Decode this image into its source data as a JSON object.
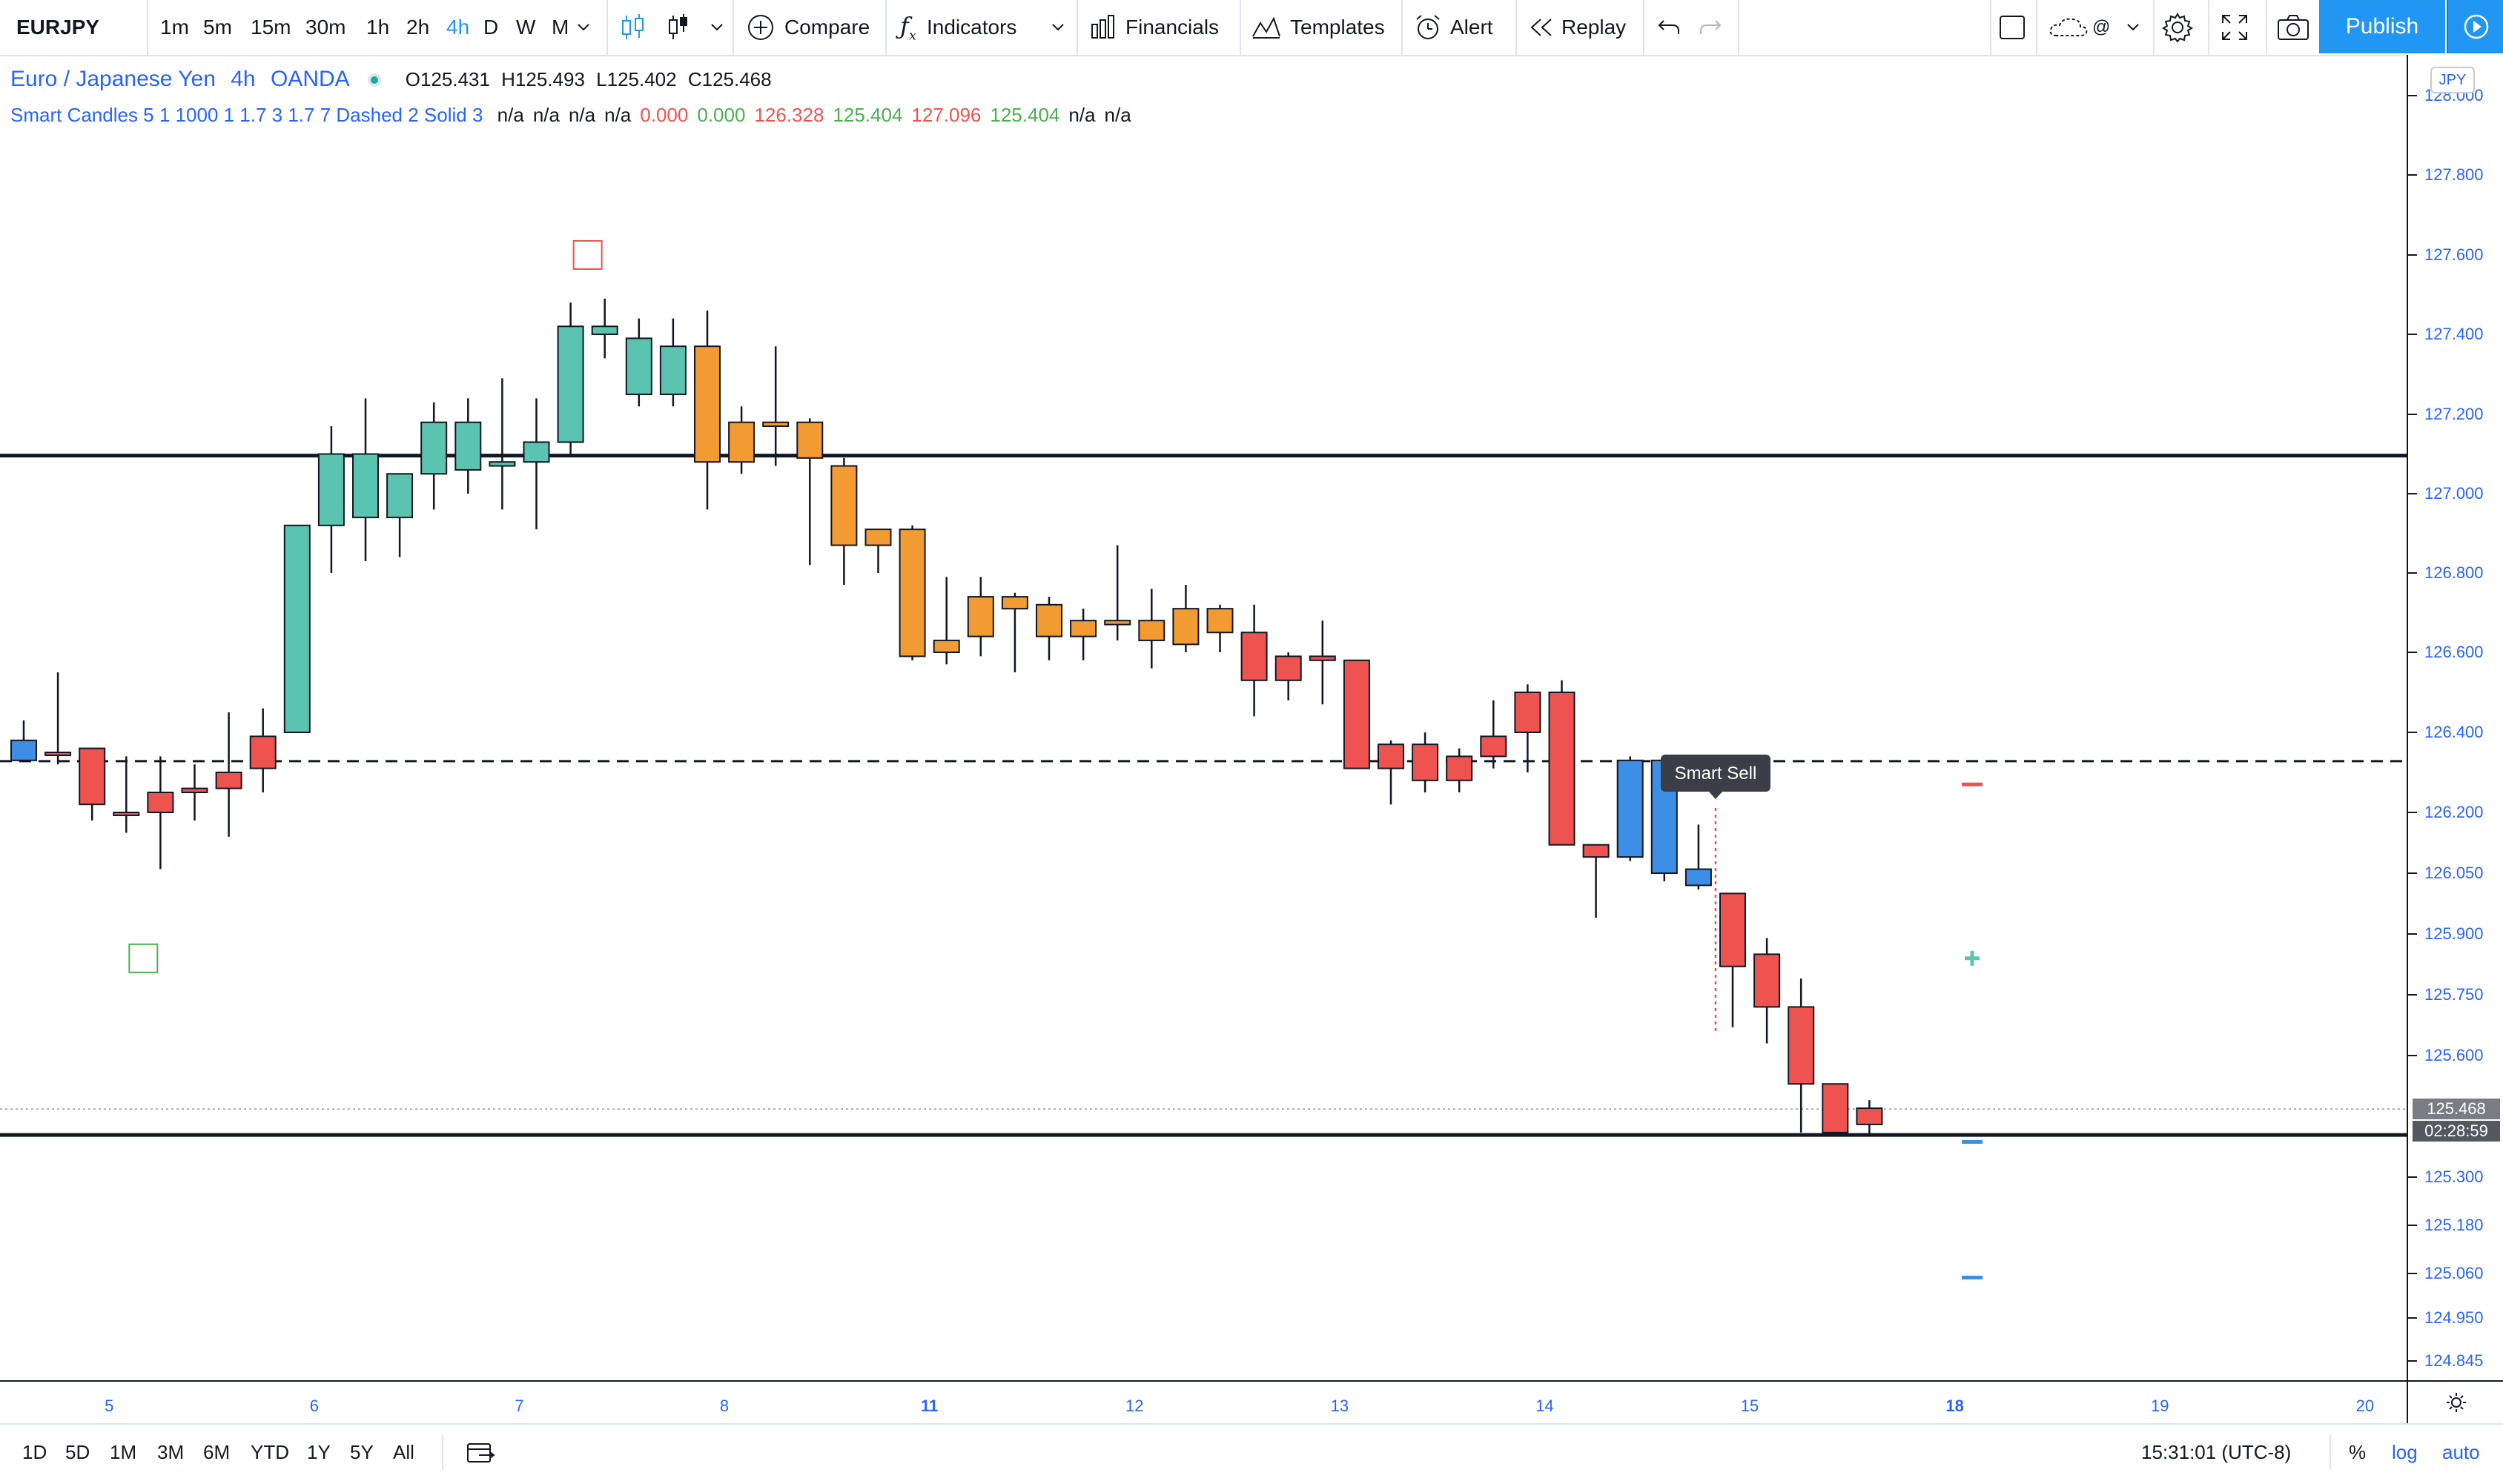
{
  "toolbar": {
    "symbol": "EURJPY",
    "timeframes": [
      "1m",
      "5m",
      "15m",
      "30m",
      "1h",
      "2h",
      "4h",
      "D",
      "W",
      "M"
    ],
    "active_timeframe": "4h",
    "compare_label": "Compare",
    "indicators_label": "Indicators",
    "financials_label": "Financials",
    "templates_label": "Templates",
    "alert_label": "Alert",
    "replay_label": "Replay",
    "publish_label": "Publish",
    "layout_label": "@"
  },
  "legend": {
    "instrument": "Euro / Japanese Yen",
    "interval": "4h",
    "broker": "OANDA",
    "ohlc": {
      "o_label": "O",
      "o": "125.431",
      "h_label": "H",
      "h": "125.493",
      "l_label": "L",
      "l": "125.402",
      "c_label": "C",
      "c": "125.468"
    },
    "indicator_name": "Smart Candles 5 1 1000 1 1.7 3 1.7 7 Dashed 2 Solid 3",
    "indicator_values": [
      {
        "text": "n/a",
        "color": "#131722"
      },
      {
        "text": "n/a",
        "color": "#131722"
      },
      {
        "text": "n/a",
        "color": "#131722"
      },
      {
        "text": "n/a",
        "color": "#131722"
      },
      {
        "text": "0.000",
        "color": "#ef5350"
      },
      {
        "text": "0.000",
        "color": "#4caf50"
      },
      {
        "text": "126.328",
        "color": "#ef5350"
      },
      {
        "text": "125.404",
        "color": "#4caf50"
      },
      {
        "text": "127.096",
        "color": "#ef5350"
      },
      {
        "text": "125.404",
        "color": "#4caf50"
      },
      {
        "text": "n/a",
        "color": "#131722"
      },
      {
        "text": "n/a",
        "color": "#131722"
      }
    ]
  },
  "price_axis": {
    "currency": "JPY",
    "last_price": "125.468",
    "countdown": "02:28:59"
  },
  "bottom_bar": {
    "ranges": [
      "1D",
      "5D",
      "1M",
      "3M",
      "6M",
      "YTD",
      "1Y",
      "5Y",
      "All"
    ],
    "clock": "15:31:01 (UTC-8)",
    "percent_label": "%",
    "log_label": "log",
    "auto_label": "auto"
  },
  "colors": {
    "bull": "#5bc4b0",
    "bear_orange": "#f19b32",
    "bear_red": "#ef5350",
    "smart_blue": "#3d8fe6",
    "axis_text": "#2962ff",
    "accent": "#2196f3"
  },
  "chart_data": {
    "type": "candlestick",
    "symbol": "EURJPY",
    "interval": "4h",
    "price_ticks": [
      128.0,
      127.8,
      127.6,
      127.4,
      127.2,
      127.0,
      126.8,
      126.6,
      126.4,
      126.2,
      126.05,
      125.9,
      125.75,
      125.6,
      125.3,
      125.18,
      125.06,
      124.95,
      124.845
    ],
    "price_tick_labels": [
      "128.000",
      "127.800",
      "127.600",
      "127.400",
      "127.200",
      "127.000",
      "126.800",
      "126.600",
      "126.400",
      "126.200",
      "126.050",
      "125.900",
      "125.750",
      "125.600",
      "125.300",
      "125.180",
      "125.060",
      "124.950",
      "124.845"
    ],
    "time_ticks": [
      {
        "label": "5",
        "bar": 2.5,
        "bold": false
      },
      {
        "label": "6",
        "bar": 8.5,
        "bold": false
      },
      {
        "label": "7",
        "bar": 14.5,
        "bold": false
      },
      {
        "label": "8",
        "bar": 20.5,
        "bold": false
      },
      {
        "label": "11",
        "bar": 26.5,
        "bold": true
      },
      {
        "label": "12",
        "bar": 32.5,
        "bold": false
      },
      {
        "label": "13",
        "bar": 38.5,
        "bold": false
      },
      {
        "label": "14",
        "bar": 44.5,
        "bold": false
      },
      {
        "label": "15",
        "bar": 50.5,
        "bold": false
      },
      {
        "label": "18",
        "bar": 56.5,
        "bold": true
      },
      {
        "label": "19",
        "bar": 62.5,
        "bold": false
      },
      {
        "label": "20",
        "bar": 68.5,
        "bold": false
      }
    ],
    "candles": [
      {
        "o": 126.33,
        "h": 126.43,
        "l": 126.33,
        "c": 126.38,
        "col": "blue"
      },
      {
        "o": 126.35,
        "h": 126.55,
        "l": 126.32,
        "c": 126.35,
        "col": "red"
      },
      {
        "o": 126.36,
        "h": 126.36,
        "l": 126.18,
        "c": 126.22,
        "col": "red"
      },
      {
        "o": 126.2,
        "h": 126.34,
        "l": 126.15,
        "c": 126.2,
        "col": "red"
      },
      {
        "o": 126.25,
        "h": 126.34,
        "l": 126.06,
        "c": 126.2,
        "col": "red"
      },
      {
        "o": 126.25,
        "h": 126.32,
        "l": 126.18,
        "c": 126.26,
        "col": "red"
      },
      {
        "o": 126.26,
        "h": 126.45,
        "l": 126.14,
        "c": 126.3,
        "col": "red"
      },
      {
        "o": 126.31,
        "h": 126.46,
        "l": 126.25,
        "c": 126.39,
        "col": "red"
      },
      {
        "o": 126.4,
        "h": 126.92,
        "l": 126.4,
        "c": 126.92,
        "col": "green"
      },
      {
        "o": 126.92,
        "h": 127.17,
        "l": 126.8,
        "c": 127.1,
        "col": "green"
      },
      {
        "o": 126.94,
        "h": 127.24,
        "l": 126.83,
        "c": 127.1,
        "col": "green"
      },
      {
        "o": 126.94,
        "h": 127.05,
        "l": 126.84,
        "c": 127.05,
        "col": "green"
      },
      {
        "o": 127.05,
        "h": 127.23,
        "l": 126.96,
        "c": 127.18,
        "col": "green"
      },
      {
        "o": 127.06,
        "h": 127.24,
        "l": 127.0,
        "c": 127.18,
        "col": "green"
      },
      {
        "o": 127.07,
        "h": 127.29,
        "l": 126.96,
        "c": 127.08,
        "col": "green"
      },
      {
        "o": 127.08,
        "h": 127.24,
        "l": 126.91,
        "c": 127.13,
        "col": "green"
      },
      {
        "o": 127.13,
        "h": 127.48,
        "l": 127.1,
        "c": 127.42,
        "col": "green"
      },
      {
        "o": 127.4,
        "h": 127.49,
        "l": 127.34,
        "c": 127.42,
        "col": "green"
      },
      {
        "o": 127.25,
        "h": 127.44,
        "l": 127.22,
        "c": 127.39,
        "col": "green"
      },
      {
        "o": 127.25,
        "h": 127.44,
        "l": 127.22,
        "c": 127.37,
        "col": "green"
      },
      {
        "o": 127.37,
        "h": 127.46,
        "l": 126.96,
        "c": 127.08,
        "col": "orange"
      },
      {
        "o": 127.18,
        "h": 127.22,
        "l": 127.05,
        "c": 127.08,
        "col": "orange"
      },
      {
        "o": 127.18,
        "h": 127.37,
        "l": 127.07,
        "c": 127.17,
        "col": "orange"
      },
      {
        "o": 127.18,
        "h": 127.19,
        "l": 126.82,
        "c": 127.09,
        "col": "orange"
      },
      {
        "o": 127.07,
        "h": 127.09,
        "l": 126.77,
        "c": 126.87,
        "col": "orange"
      },
      {
        "o": 126.91,
        "h": 126.91,
        "l": 126.8,
        "c": 126.87,
        "col": "orange"
      },
      {
        "o": 126.91,
        "h": 126.92,
        "l": 126.58,
        "c": 126.59,
        "col": "orange"
      },
      {
        "o": 126.63,
        "h": 126.79,
        "l": 126.57,
        "c": 126.6,
        "col": "orange"
      },
      {
        "o": 126.74,
        "h": 126.79,
        "l": 126.59,
        "c": 126.64,
        "col": "orange"
      },
      {
        "o": 126.74,
        "h": 126.75,
        "l": 126.55,
        "c": 126.71,
        "col": "orange"
      },
      {
        "o": 126.72,
        "h": 126.74,
        "l": 126.58,
        "c": 126.64,
        "col": "orange"
      },
      {
        "o": 126.68,
        "h": 126.71,
        "l": 126.58,
        "c": 126.64,
        "col": "orange"
      },
      {
        "o": 126.68,
        "h": 126.87,
        "l": 126.63,
        "c": 126.67,
        "col": "orange"
      },
      {
        "o": 126.68,
        "h": 126.76,
        "l": 126.56,
        "c": 126.63,
        "col": "orange"
      },
      {
        "o": 126.71,
        "h": 126.77,
        "l": 126.6,
        "c": 126.62,
        "col": "orange"
      },
      {
        "o": 126.71,
        "h": 126.72,
        "l": 126.6,
        "c": 126.65,
        "col": "orange"
      },
      {
        "o": 126.65,
        "h": 126.72,
        "l": 126.44,
        "c": 126.53,
        "col": "red"
      },
      {
        "o": 126.59,
        "h": 126.6,
        "l": 126.48,
        "c": 126.53,
        "col": "red"
      },
      {
        "o": 126.58,
        "h": 126.68,
        "l": 126.47,
        "c": 126.59,
        "col": "red"
      },
      {
        "o": 126.58,
        "h": 126.58,
        "l": 126.31,
        "c": 126.31,
        "col": "red"
      },
      {
        "o": 126.37,
        "h": 126.38,
        "l": 126.22,
        "c": 126.31,
        "col": "red"
      },
      {
        "o": 126.37,
        "h": 126.4,
        "l": 126.25,
        "c": 126.28,
        "col": "red"
      },
      {
        "o": 126.34,
        "h": 126.36,
        "l": 126.25,
        "c": 126.28,
        "col": "red"
      },
      {
        "o": 126.39,
        "h": 126.48,
        "l": 126.31,
        "c": 126.34,
        "col": "red"
      },
      {
        "o": 126.5,
        "h": 126.52,
        "l": 126.3,
        "c": 126.4,
        "col": "red"
      },
      {
        "o": 126.5,
        "h": 126.53,
        "l": 126.12,
        "c": 126.12,
        "col": "red"
      },
      {
        "o": 126.12,
        "h": 126.12,
        "l": 125.94,
        "c": 126.09,
        "col": "red"
      },
      {
        "o": 126.09,
        "h": 126.34,
        "l": 126.08,
        "c": 126.33,
        "col": "blue"
      },
      {
        "o": 126.05,
        "h": 126.34,
        "l": 126.03,
        "c": 126.33,
        "col": "blue"
      },
      {
        "o": 126.02,
        "h": 126.17,
        "l": 126.01,
        "c": 126.06,
        "col": "blue"
      },
      {
        "o": 126.0,
        "h": 126.0,
        "l": 125.67,
        "c": 125.82,
        "col": "red"
      },
      {
        "o": 125.85,
        "h": 125.89,
        "l": 125.63,
        "c": 125.72,
        "col": "red"
      },
      {
        "o": 125.72,
        "h": 125.79,
        "l": 125.41,
        "c": 125.53,
        "col": "red"
      },
      {
        "o": 125.53,
        "h": 125.53,
        "l": 125.4,
        "c": 125.41,
        "col": "red"
      },
      {
        "o": 125.47,
        "h": 125.49,
        "l": 125.4,
        "c": 125.43,
        "col": "red"
      }
    ],
    "levels": [
      {
        "price": 127.096,
        "style": "solid"
      },
      {
        "price": 126.328,
        "style": "dashed"
      },
      {
        "price": 125.404,
        "style": "solid"
      }
    ],
    "signal_boxes": [
      {
        "bar": 16.5,
        "price": 127.6,
        "color": "#ef5350"
      },
      {
        "bar": 3.5,
        "price": 125.84,
        "color": "#4caf50"
      }
    ],
    "right_markers": [
      {
        "price": 126.27,
        "shape": "dash",
        "color": "#ef5350"
      },
      {
        "price": 125.84,
        "shape": "plus",
        "color": "#5bc4b0"
      },
      {
        "price": 125.387,
        "shape": "dash",
        "color": "#3d8fe6"
      },
      {
        "price": 125.05,
        "shape": "dash",
        "color": "#3d8fe6"
      }
    ],
    "annotation": {
      "text": "Smart Sell",
      "bar": 49.5,
      "price": 126.2
    }
  }
}
